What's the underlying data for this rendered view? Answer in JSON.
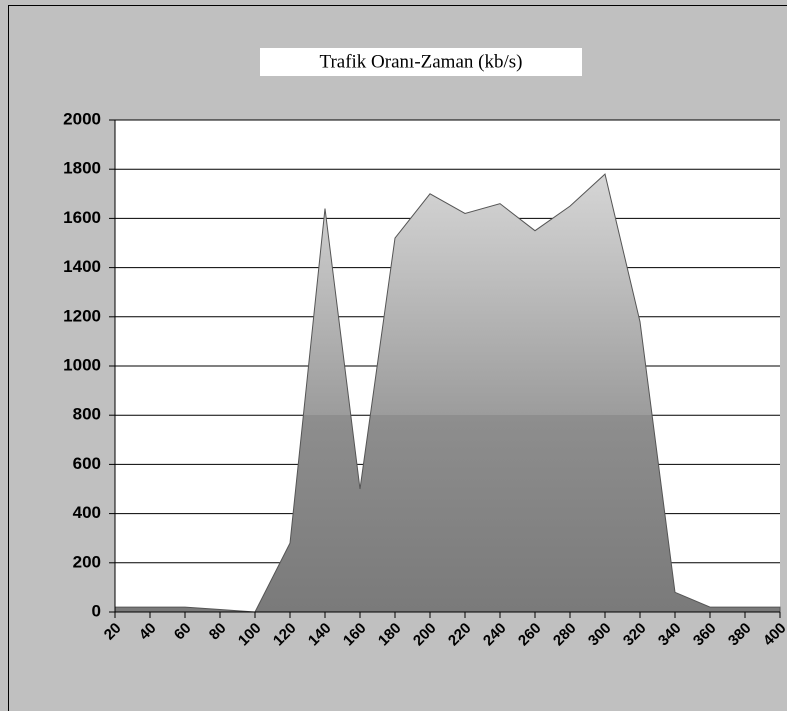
{
  "chart_data": {
    "type": "area",
    "title": "Trafik Oranı-Zaman (kb/s)",
    "categories": [
      "20",
      "40",
      "60",
      "80",
      "100",
      "120",
      "140",
      "160",
      "180",
      "200",
      "220",
      "240",
      "260",
      "280",
      "300",
      "320",
      "340",
      "360",
      "380",
      "400"
    ],
    "values": [
      20,
      20,
      20,
      10,
      0,
      280,
      1640,
      500,
      1520,
      1700,
      1620,
      1660,
      1550,
      1650,
      1780,
      1180,
      80,
      20,
      20,
      20
    ],
    "color": "#909090",
    "ylim": [
      0,
      2000
    ],
    "yticks": [
      0,
      200,
      400,
      600,
      800,
      1000,
      1200,
      1400,
      1600,
      1800,
      2000
    ],
    "grid": true
  }
}
